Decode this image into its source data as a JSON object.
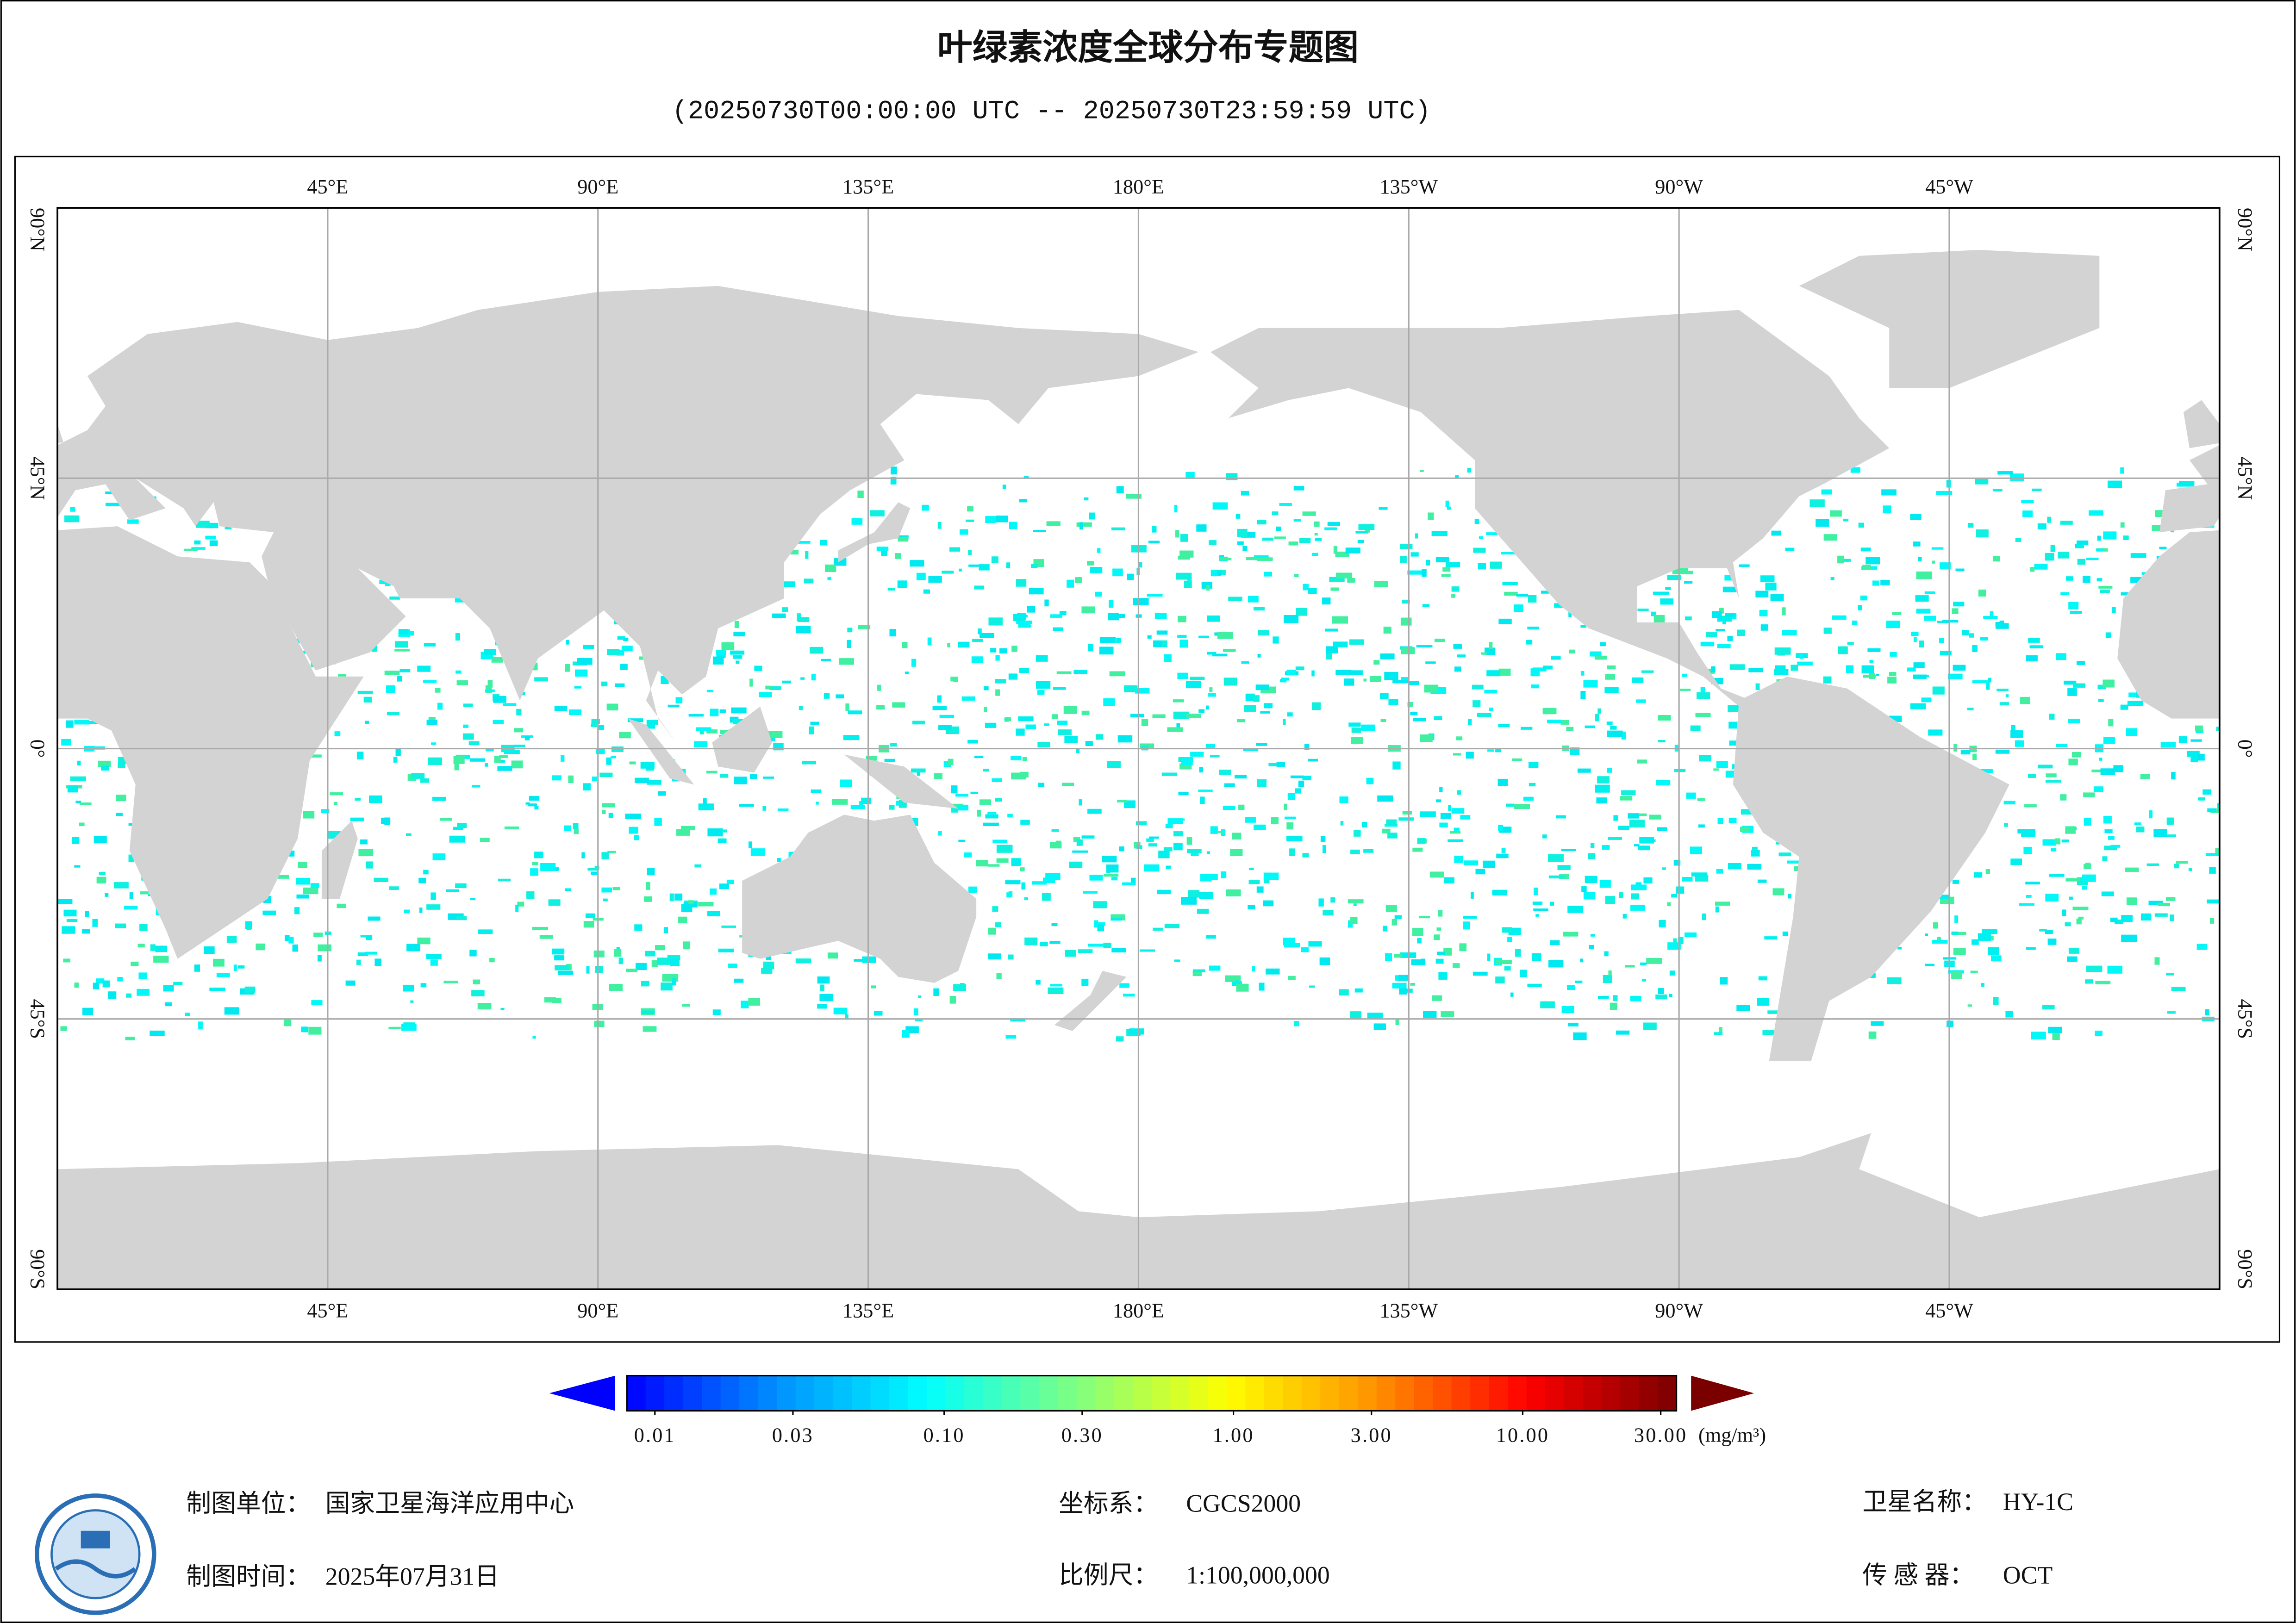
{
  "header": {
    "title": "叶绿素浓度全球分布专题图",
    "subtitle": "(20250730T00:00:00 UTC -- 20250730T23:59:59 UTC)"
  },
  "map": {
    "lon_ticks": [
      {
        "value": 45,
        "label": "45°E"
      },
      {
        "value": 90,
        "label": "90°E"
      },
      {
        "value": 135,
        "label": "135°E"
      },
      {
        "value": 180,
        "label": "180°E"
      },
      {
        "value": 225,
        "label": "135°W"
      },
      {
        "value": 270,
        "label": "90°W"
      },
      {
        "value": 315,
        "label": "45°W"
      }
    ],
    "lat_ticks": [
      {
        "value": 90,
        "label": "90°N"
      },
      {
        "value": 45,
        "label": "45°N"
      },
      {
        "value": 0,
        "label": "0°"
      },
      {
        "value": -45,
        "label": "45°S"
      },
      {
        "value": -90,
        "label": "90°S"
      }
    ],
    "lonlim": [
      0,
      360
    ],
    "latlim": [
      -90,
      90
    ]
  },
  "colorbar": {
    "scale": "log",
    "lim": [
      0.008,
      34
    ],
    "ticks": [
      {
        "value": 0.01,
        "label": "0.01"
      },
      {
        "value": 0.03,
        "label": "0.03"
      },
      {
        "value": 0.1,
        "label": "0.10"
      },
      {
        "value": 0.3,
        "label": "0.30"
      },
      {
        "value": 1,
        "label": "1.00"
      },
      {
        "value": 3,
        "label": "3.00"
      },
      {
        "value": 10,
        "label": "10.00"
      },
      {
        "value": 30,
        "label": "30.00"
      }
    ],
    "unit": "(mg/m³)",
    "colors": [
      "#0000ff",
      "#0090ff",
      "#00ffff",
      "#80ff80",
      "#ffff00",
      "#ff9000",
      "#ff0000",
      "#7a0000"
    ]
  },
  "footer": {
    "unit_label": "制图单位：",
    "unit": "国家卫星海洋应用中心",
    "crs_label": "坐标系：",
    "crs": "CGCS2000",
    "satellite_label": "卫星名称：",
    "satellite": "HY-1C",
    "time_label": "制图时间：",
    "time": "2025年07月31日",
    "scale_label": "比例尺：",
    "scale": "1:100,000,000",
    "sensor_label": "传 感 器：",
    "sensor": "OCT"
  }
}
